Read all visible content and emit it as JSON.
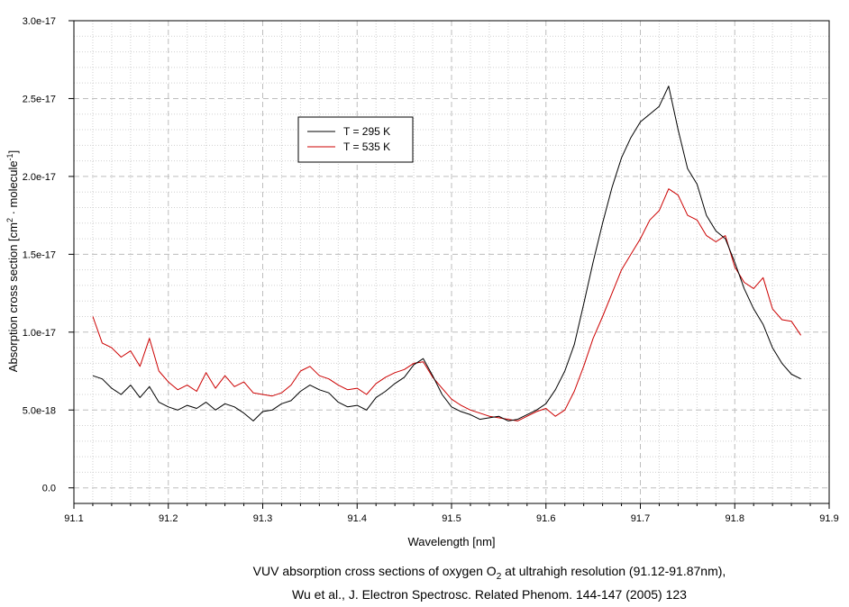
{
  "chart_data": {
    "type": "line",
    "xlabel": "Wavelength [nm]",
    "ylabel_main": "Absorption cross section [cm",
    "ylabel_sup1": "2",
    "ylabel_mid": " · molecule",
    "ylabel_sup2": "-1",
    "ylabel_end": "]",
    "xlim": [
      91.1,
      91.9
    ],
    "ylim": [
      -1e-18,
      3e-17
    ],
    "x_ticks": [
      "91.1",
      "91.2",
      "91.3",
      "91.4",
      "91.5",
      "91.6",
      "91.7",
      "91.8",
      "91.9"
    ],
    "y_ticks": [
      "0.0",
      "5.0e-18",
      "1.0e-17",
      "1.5e-17",
      "2.0e-17",
      "2.5e-17",
      "3.0e-17"
    ],
    "grid": true,
    "legend_position": "upper-left-center",
    "series": [
      {
        "name": "T = 295 K",
        "color": "#000000",
        "x": [
          91.12,
          91.13,
          91.14,
          91.15,
          91.16,
          91.17,
          91.18,
          91.19,
          91.2,
          91.21,
          91.22,
          91.23,
          91.24,
          91.25,
          91.26,
          91.27,
          91.28,
          91.29,
          91.3,
          91.31,
          91.32,
          91.33,
          91.34,
          91.35,
          91.36,
          91.37,
          91.38,
          91.39,
          91.4,
          91.41,
          91.42,
          91.43,
          91.44,
          91.45,
          91.46,
          91.47,
          91.48,
          91.49,
          91.5,
          91.51,
          91.52,
          91.53,
          91.54,
          91.55,
          91.56,
          91.57,
          91.58,
          91.59,
          91.6,
          91.61,
          91.62,
          91.63,
          91.64,
          91.65,
          91.66,
          91.67,
          91.68,
          91.69,
          91.7,
          91.71,
          91.72,
          91.73,
          91.74,
          91.75,
          91.76,
          91.77,
          91.78,
          91.79,
          91.8,
          91.81,
          91.82,
          91.83,
          91.84,
          91.85,
          91.86,
          91.87
        ],
        "y": [
          7.2e-18,
          7e-18,
          6.4e-18,
          6e-18,
          6.6e-18,
          5.8e-18,
          6.5e-18,
          5.5e-18,
          5.2e-18,
          5e-18,
          5.3e-18,
          5.1e-18,
          5.5e-18,
          5e-18,
          5.4e-18,
          5.2e-18,
          4.8e-18,
          4.3e-18,
          4.9e-18,
          5e-18,
          5.4e-18,
          5.6e-18,
          6.2e-18,
          6.6e-18,
          6.3e-18,
          6.1e-18,
          5.5e-18,
          5.2e-18,
          5.3e-18,
          5e-18,
          5.8e-18,
          6.2e-18,
          6.7e-18,
          7.1e-18,
          7.9e-18,
          8.3e-18,
          7.2e-18,
          6e-18,
          5.2e-18,
          4.9e-18,
          4.7e-18,
          4.4e-18,
          4.5e-18,
          4.6e-18,
          4.3e-18,
          4.4e-18,
          4.7e-18,
          5e-18,
          5.4e-18,
          6.3e-18,
          7.5e-18,
          9.2e-18,
          1.18e-17,
          1.45e-17,
          1.7e-17,
          1.93e-17,
          2.12e-17,
          2.25e-17,
          2.35e-17,
          2.4e-17,
          2.45e-17,
          2.58e-17,
          2.3e-17,
          2.05e-17,
          1.95e-17,
          1.75e-17,
          1.65e-17,
          1.6e-17,
          1.45e-17,
          1.28e-17,
          1.15e-17,
          1.05e-17,
          9e-18,
          8e-18,
          7.3e-18,
          7e-18
        ]
      },
      {
        "name": "T = 535 K",
        "color": "#cc0000",
        "x": [
          91.12,
          91.13,
          91.14,
          91.15,
          91.16,
          91.17,
          91.18,
          91.19,
          91.2,
          91.21,
          91.22,
          91.23,
          91.24,
          91.25,
          91.26,
          91.27,
          91.28,
          91.29,
          91.3,
          91.31,
          91.32,
          91.33,
          91.34,
          91.35,
          91.36,
          91.37,
          91.38,
          91.39,
          91.4,
          91.41,
          91.42,
          91.43,
          91.44,
          91.45,
          91.46,
          91.47,
          91.48,
          91.49,
          91.5,
          91.51,
          91.52,
          91.53,
          91.54,
          91.55,
          91.56,
          91.57,
          91.58,
          91.59,
          91.6,
          91.61,
          91.62,
          91.63,
          91.64,
          91.65,
          91.66,
          91.67,
          91.68,
          91.69,
          91.7,
          91.71,
          91.72,
          91.73,
          91.74,
          91.75,
          91.76,
          91.77,
          91.78,
          91.79,
          91.8,
          91.81,
          91.82,
          91.83,
          91.84,
          91.85,
          91.86,
          91.87
        ],
        "y": [
          1.1e-17,
          9.3e-18,
          9e-18,
          8.4e-18,
          8.8e-18,
          7.8e-18,
          9.6e-18,
          7.5e-18,
          6.8e-18,
          6.3e-18,
          6.6e-18,
          6.2e-18,
          7.4e-18,
          6.4e-18,
          7.2e-18,
          6.5e-18,
          6.8e-18,
          6.1e-18,
          6e-18,
          5.9e-18,
          6.1e-18,
          6.6e-18,
          7.5e-18,
          7.8e-18,
          7.2e-18,
          7e-18,
          6.6e-18,
          6.3e-18,
          6.4e-18,
          6e-18,
          6.7e-18,
          7.1e-18,
          7.4e-18,
          7.6e-18,
          8e-18,
          8.1e-18,
          7.1e-18,
          6.4e-18,
          5.7e-18,
          5.3e-18,
          5e-18,
          4.8e-18,
          4.6e-18,
          4.5e-18,
          4.4e-18,
          4.3e-18,
          4.6e-18,
          4.9e-18,
          5.1e-18,
          4.6e-18,
          5e-18,
          6.2e-18,
          7.8e-18,
          9.6e-18,
          1.1e-17,
          1.25e-17,
          1.4e-17,
          1.5e-17,
          1.6e-17,
          1.72e-17,
          1.78e-17,
          1.92e-17,
          1.88e-17,
          1.75e-17,
          1.72e-17,
          1.62e-17,
          1.58e-17,
          1.62e-17,
          1.42e-17,
          1.32e-17,
          1.28e-17,
          1.35e-17,
          1.15e-17,
          1.08e-17,
          1.07e-17,
          9.8e-18
        ]
      }
    ]
  },
  "caption": {
    "line1_pre": "VUV absorption cross sections of oxygen O",
    "line1_sub": "2",
    "line1_post": " at ultrahigh resolution (91.12-91.87nm),",
    "line2": "Wu et al.,  J. Electron Spectrosc. Related Phenom. 144-147 (2005) 123"
  }
}
